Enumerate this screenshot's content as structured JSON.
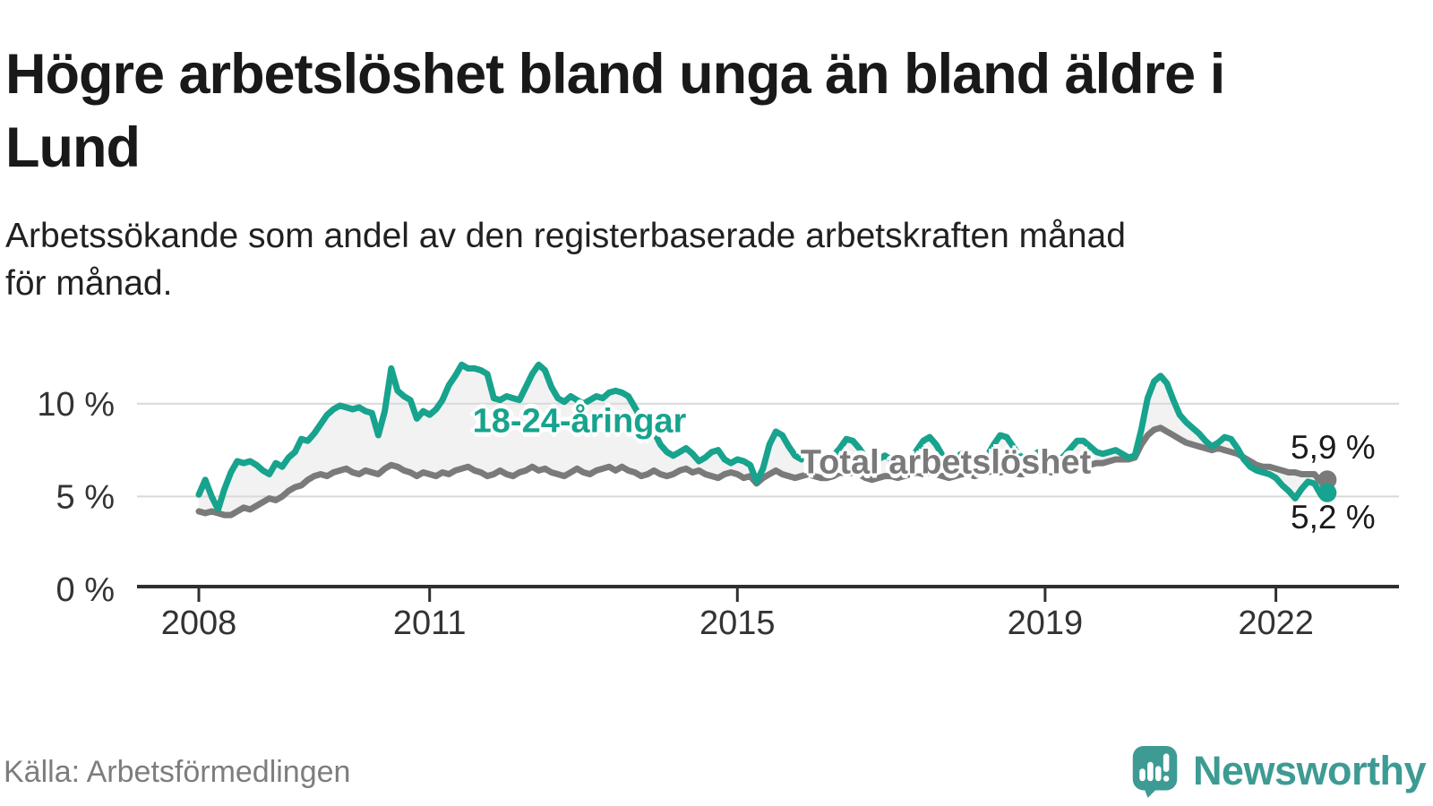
{
  "title": "Högre arbetslöshet bland unga än bland äldre i Lund",
  "subtitle": {
    "line1": "Arbetssökande som andel av den registerbaserade arbetskraften månad",
    "line2": "för månad."
  },
  "source": "Källa: Arbetsförmedlingen",
  "branding": {
    "name": "Newsworthy",
    "icon": "speech-bubble-bar-chart-icon",
    "color": "#3d9b94"
  },
  "colors": {
    "youth_line": "#17a38d",
    "total_line": "#7a7a7a",
    "band_fill": "#f2f2f2",
    "gridline": "#d9d9d9",
    "axis": "#2f2f2f",
    "tick_text": "#333333"
  },
  "chart_data": {
    "type": "line",
    "title": "Högre arbetslöshet bland unga än bland äldre i Lund",
    "xlabel": "",
    "ylabel": "Arbetssökande som andel av den registerbaserade arbetskraften",
    "frequency": "monthly",
    "x_start": "2008-01",
    "x_end": "2022-09",
    "x_ticks": [
      2008,
      2011,
      2015,
      2019,
      2022
    ],
    "y_ticks": [
      {
        "value": 0,
        "label": "0 %"
      },
      {
        "value": 5,
        "label": "5 %"
      },
      {
        "value": 10,
        "label": "10 %"
      }
    ],
    "ylim": [
      0,
      13
    ],
    "grid": true,
    "legend_position": "inline-labels",
    "band_fill_between_series": true,
    "series": [
      {
        "name": "18-24-åringar",
        "color": "#17a38d",
        "end_label": "5,2 %",
        "end_value": 5.2,
        "values": [
          5.1,
          5.9,
          5.0,
          4.3,
          5.4,
          6.3,
          6.9,
          6.8,
          6.9,
          6.7,
          6.4,
          6.2,
          6.8,
          6.6,
          7.1,
          7.4,
          8.1,
          8.0,
          8.4,
          8.9,
          9.4,
          9.7,
          9.9,
          9.8,
          9.7,
          9.8,
          9.6,
          9.5,
          8.3,
          9.6,
          11.9,
          10.7,
          10.4,
          10.2,
          9.2,
          9.6,
          9.4,
          9.7,
          10.2,
          11.0,
          11.5,
          12.1,
          11.9,
          11.9,
          11.8,
          11.6,
          10.3,
          10.2,
          10.4,
          10.3,
          10.2,
          10.9,
          11.6,
          12.1,
          11.8,
          10.9,
          10.3,
          10.1,
          10.4,
          10.2,
          10.0,
          10.2,
          10.4,
          10.3,
          10.6,
          10.7,
          10.6,
          10.4,
          9.8,
          9.2,
          8.8,
          8.5,
          7.8,
          7.4,
          7.2,
          7.4,
          7.6,
          7.3,
          6.9,
          7.1,
          7.4,
          7.5,
          7.0,
          6.8,
          7.0,
          6.9,
          6.7,
          5.8,
          6.5,
          7.8,
          8.5,
          8.3,
          7.7,
          7.2,
          7.0,
          7.3,
          7.4,
          7.1,
          6.9,
          7.2,
          7.6,
          8.1,
          8.0,
          7.6,
          7.1,
          6.8,
          7.0,
          7.2,
          7.0,
          6.8,
          6.7,
          7.0,
          7.5,
          8.0,
          8.2,
          7.8,
          7.2,
          6.9,
          7.1,
          7.3,
          7.1,
          6.9,
          6.8,
          7.2,
          7.8,
          8.3,
          8.2,
          7.7,
          7.2,
          7.0,
          7.2,
          7.4,
          7.2,
          7.0,
          6.9,
          7.2,
          7.6,
          8.0,
          8.0,
          7.7,
          7.4,
          7.3,
          7.4,
          7.5,
          7.3,
          7.1,
          7.2,
          8.6,
          10.3,
          11.2,
          11.5,
          11.1,
          10.2,
          9.4,
          9.0,
          8.7,
          8.4,
          8.0,
          7.7,
          7.9,
          8.2,
          8.1,
          7.6,
          7.0,
          6.6,
          6.4,
          6.3,
          6.2,
          6.0,
          5.6,
          5.3,
          4.9,
          5.4,
          5.8,
          5.7,
          5.1,
          5.2
        ]
      },
      {
        "name": "Total arbetslöshet",
        "color": "#7a7a7a",
        "end_label": "5,9 %",
        "end_value": 5.9,
        "values": [
          4.2,
          4.1,
          4.2,
          4.1,
          4.0,
          4.0,
          4.2,
          4.4,
          4.3,
          4.5,
          4.7,
          4.9,
          4.8,
          5.0,
          5.3,
          5.5,
          5.6,
          5.9,
          6.1,
          6.2,
          6.1,
          6.3,
          6.4,
          6.5,
          6.3,
          6.2,
          6.4,
          6.3,
          6.2,
          6.5,
          6.7,
          6.6,
          6.4,
          6.3,
          6.1,
          6.3,
          6.2,
          6.1,
          6.3,
          6.2,
          6.4,
          6.5,
          6.6,
          6.4,
          6.3,
          6.1,
          6.2,
          6.4,
          6.2,
          6.1,
          6.3,
          6.4,
          6.6,
          6.4,
          6.5,
          6.3,
          6.2,
          6.1,
          6.3,
          6.5,
          6.3,
          6.2,
          6.4,
          6.5,
          6.6,
          6.4,
          6.6,
          6.4,
          6.3,
          6.1,
          6.2,
          6.4,
          6.2,
          6.1,
          6.2,
          6.4,
          6.5,
          6.3,
          6.4,
          6.2,
          6.1,
          6.0,
          6.2,
          6.3,
          6.2,
          6.0,
          6.1,
          5.7,
          6.0,
          6.2,
          6.4,
          6.2,
          6.1,
          6.0,
          6.1,
          6.2,
          6.1,
          6.0,
          6.0,
          6.1,
          6.3,
          6.2,
          6.3,
          6.2,
          6.0,
          5.9,
          6.0,
          6.1,
          6.1,
          6.0,
          6.1,
          6.2,
          6.3,
          6.2,
          6.3,
          6.2,
          6.1,
          6.0,
          6.1,
          6.2,
          6.2,
          6.1,
          6.2,
          6.3,
          6.4,
          6.3,
          6.4,
          6.3,
          6.2,
          6.2,
          6.3,
          6.4,
          6.4,
          6.3,
          6.4,
          6.5,
          6.6,
          6.6,
          6.7,
          6.7,
          6.8,
          6.8,
          6.9,
          7.0,
          7.0,
          7.0,
          7.1,
          7.8,
          8.3,
          8.6,
          8.7,
          8.5,
          8.3,
          8.1,
          7.9,
          7.8,
          7.7,
          7.6,
          7.5,
          7.6,
          7.5,
          7.4,
          7.3,
          7.1,
          6.9,
          6.7,
          6.6,
          6.6,
          6.5,
          6.4,
          6.3,
          6.3,
          6.2,
          6.2,
          6.2,
          5.8,
          5.9
        ]
      }
    ]
  }
}
